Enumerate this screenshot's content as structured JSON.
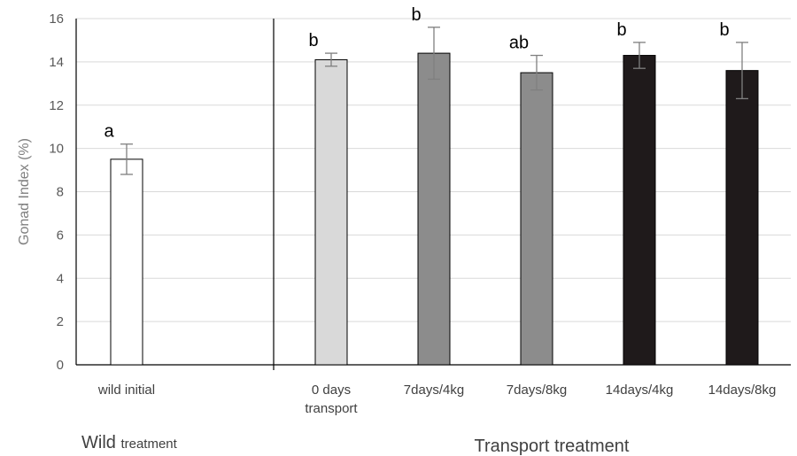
{
  "chart_data": {
    "type": "bar",
    "ylabel": "Gonad Index (%)",
    "ylim": [
      0,
      16
    ],
    "ytick_step": 2,
    "grid": true,
    "categories": [
      {
        "label_lines": [
          "wild initial"
        ],
        "value": 9.5,
        "err": 0.7,
        "sig": "a",
        "color": "#ffffff"
      },
      {
        "label_lines": [
          "0 days",
          "transport"
        ],
        "value": 14.1,
        "err": 0.3,
        "sig": "b",
        "color": "#d9d9d9"
      },
      {
        "label_lines": [
          "7days/4kg"
        ],
        "value": 14.4,
        "err": 1.2,
        "sig": "b",
        "color": "#8c8c8c"
      },
      {
        "label_lines": [
          "7days/8kg"
        ],
        "value": 13.5,
        "err": 0.8,
        "sig": "ab",
        "color": "#8c8c8c"
      },
      {
        "label_lines": [
          "14days/4kg"
        ],
        "value": 14.3,
        "err": 0.6,
        "sig": "b",
        "color": "#1f1a1b"
      },
      {
        "label_lines": [
          "14days/8kg"
        ],
        "value": 13.6,
        "err": 1.3,
        "sig": "b",
        "color": "#1f1a1b"
      }
    ],
    "groups": [
      {
        "main": "Wild",
        "suffix": "treatment"
      },
      {
        "main": "Transport treatment",
        "suffix": ""
      }
    ]
  }
}
